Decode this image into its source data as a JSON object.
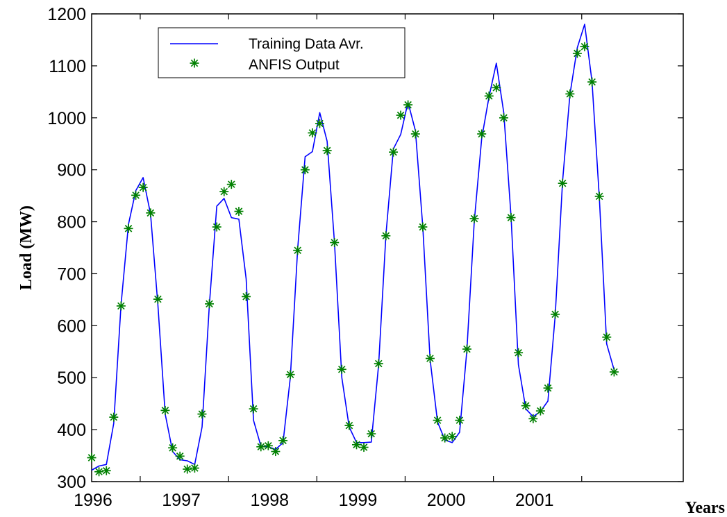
{
  "chart_data": {
    "type": "line",
    "title": "",
    "xlabel": "Years",
    "ylabel": "Load (MW)",
    "ylim": [
      300,
      1200
    ],
    "yticks": [
      300,
      400,
      500,
      600,
      700,
      800,
      900,
      1000,
      1100,
      1200
    ],
    "xlim": [
      1995.0,
      2001.7
    ],
    "xticks": [
      {
        "label": "1996",
        "value": 1995.55
      },
      {
        "label": "1997",
        "value": 1996.55
      },
      {
        "label": "1998",
        "value": 1997.55
      },
      {
        "label": "1999",
        "value": 1998.55
      },
      {
        "label": "2000",
        "value": 1999.55
      },
      {
        "label": "2001",
        "value": 2000.55
      }
    ],
    "grid": false,
    "legend_position": "top-left",
    "series": [
      {
        "name": "Training Data Avr.",
        "style": "line",
        "color": "#0000ff",
        "points": [
          [
            1995.0,
            322
          ],
          [
            1995.083,
            330
          ],
          [
            1995.167,
            333
          ],
          [
            1995.25,
            412
          ],
          [
            1995.333,
            640
          ],
          [
            1995.417,
            795
          ],
          [
            1995.5,
            860
          ],
          [
            1995.583,
            885
          ],
          [
            1995.667,
            815
          ],
          [
            1995.75,
            640
          ],
          [
            1995.833,
            430
          ],
          [
            1995.917,
            358
          ],
          [
            1996.0,
            342
          ],
          [
            1996.083,
            340
          ],
          [
            1996.167,
            333
          ],
          [
            1996.25,
            405
          ],
          [
            1996.333,
            640
          ],
          [
            1996.417,
            830
          ],
          [
            1996.5,
            845
          ],
          [
            1996.583,
            808
          ],
          [
            1996.667,
            805
          ],
          [
            1996.75,
            690
          ],
          [
            1996.833,
            418
          ],
          [
            1996.917,
            368
          ],
          [
            1997.0,
            367
          ],
          [
            1997.083,
            362
          ],
          [
            1997.167,
            375
          ],
          [
            1997.25,
            500
          ],
          [
            1997.333,
            748
          ],
          [
            1997.417,
            925
          ],
          [
            1997.5,
            935
          ],
          [
            1997.583,
            1010
          ],
          [
            1997.667,
            955
          ],
          [
            1997.75,
            760
          ],
          [
            1997.833,
            500
          ],
          [
            1997.917,
            405
          ],
          [
            1998.0,
            375
          ],
          [
            1998.083,
            375
          ],
          [
            1998.167,
            376
          ],
          [
            1998.25,
            525
          ],
          [
            1998.333,
            775
          ],
          [
            1998.417,
            940
          ],
          [
            1998.5,
            968
          ],
          [
            1998.583,
            1030
          ],
          [
            1998.667,
            975
          ],
          [
            1998.75,
            790
          ],
          [
            1998.833,
            535
          ],
          [
            1998.917,
            415
          ],
          [
            1999.0,
            380
          ],
          [
            1999.083,
            375
          ],
          [
            1999.167,
            395
          ],
          [
            1999.25,
            553
          ],
          [
            1999.333,
            800
          ],
          [
            1999.417,
            960
          ],
          [
            1999.5,
            1040
          ],
          [
            1999.583,
            1105
          ],
          [
            1999.667,
            1010
          ],
          [
            1999.75,
            810
          ],
          [
            1999.833,
            525
          ],
          [
            1999.917,
            440
          ],
          [
            2000.0,
            425
          ],
          [
            2000.083,
            435
          ],
          [
            2000.167,
            455
          ],
          [
            2000.25,
            620
          ],
          [
            2000.333,
            878
          ],
          [
            2000.417,
            1045
          ],
          [
            2000.5,
            1135
          ],
          [
            2000.583,
            1180
          ],
          [
            2000.667,
            1070
          ],
          [
            2000.75,
            845
          ],
          [
            2000.833,
            565
          ],
          [
            2000.917,
            515
          ]
        ]
      },
      {
        "name": "ANFIS Output",
        "style": "markers",
        "color": "#008000",
        "points": [
          [
            1995.0,
            346
          ],
          [
            1995.083,
            319
          ],
          [
            1995.167,
            321
          ],
          [
            1995.25,
            424
          ],
          [
            1995.333,
            638
          ],
          [
            1995.417,
            787
          ],
          [
            1995.5,
            851
          ],
          [
            1995.583,
            866
          ],
          [
            1995.667,
            817
          ],
          [
            1995.75,
            651
          ],
          [
            1995.833,
            437
          ],
          [
            1995.917,
            365
          ],
          [
            1996.0,
            349
          ],
          [
            1996.083,
            324
          ],
          [
            1996.167,
            326
          ],
          [
            1996.25,
            430
          ],
          [
            1996.333,
            642
          ],
          [
            1996.417,
            790
          ],
          [
            1996.5,
            858
          ],
          [
            1996.583,
            872
          ],
          [
            1996.667,
            820
          ],
          [
            1996.75,
            656
          ],
          [
            1996.833,
            440
          ],
          [
            1996.917,
            367
          ],
          [
            1997.0,
            369
          ],
          [
            1997.083,
            358
          ],
          [
            1997.167,
            379
          ],
          [
            1997.25,
            506
          ],
          [
            1997.333,
            745
          ],
          [
            1997.417,
            900
          ],
          [
            1997.5,
            971
          ],
          [
            1997.583,
            989
          ],
          [
            1997.667,
            937
          ],
          [
            1997.75,
            760
          ],
          [
            1997.833,
            516
          ],
          [
            1997.917,
            408
          ],
          [
            1998.0,
            371
          ],
          [
            1998.083,
            366
          ],
          [
            1998.167,
            392
          ],
          [
            1998.25,
            527
          ],
          [
            1998.333,
            773
          ],
          [
            1998.417,
            934
          ],
          [
            1998.5,
            1005
          ],
          [
            1998.583,
            1025
          ],
          [
            1998.667,
            969
          ],
          [
            1998.75,
            790
          ],
          [
            1998.833,
            537
          ],
          [
            1998.917,
            418
          ],
          [
            1999.0,
            384
          ],
          [
            1999.083,
            387
          ],
          [
            1999.167,
            418
          ],
          [
            1999.25,
            555
          ],
          [
            1999.333,
            806
          ],
          [
            1999.417,
            969
          ],
          [
            1999.5,
            1042
          ],
          [
            1999.583,
            1058
          ],
          [
            1999.667,
            1000
          ],
          [
            1999.75,
            808
          ],
          [
            1999.833,
            548
          ],
          [
            1999.917,
            446
          ],
          [
            2000.0,
            421
          ],
          [
            2000.083,
            436
          ],
          [
            2000.167,
            480
          ],
          [
            2000.25,
            622
          ],
          [
            2000.333,
            874
          ],
          [
            2000.417,
            1046
          ],
          [
            2000.5,
            1124
          ],
          [
            2000.583,
            1137
          ],
          [
            2000.667,
            1069
          ],
          [
            2000.75,
            849
          ],
          [
            2000.833,
            578
          ],
          [
            2000.917,
            511
          ]
        ]
      }
    ]
  }
}
